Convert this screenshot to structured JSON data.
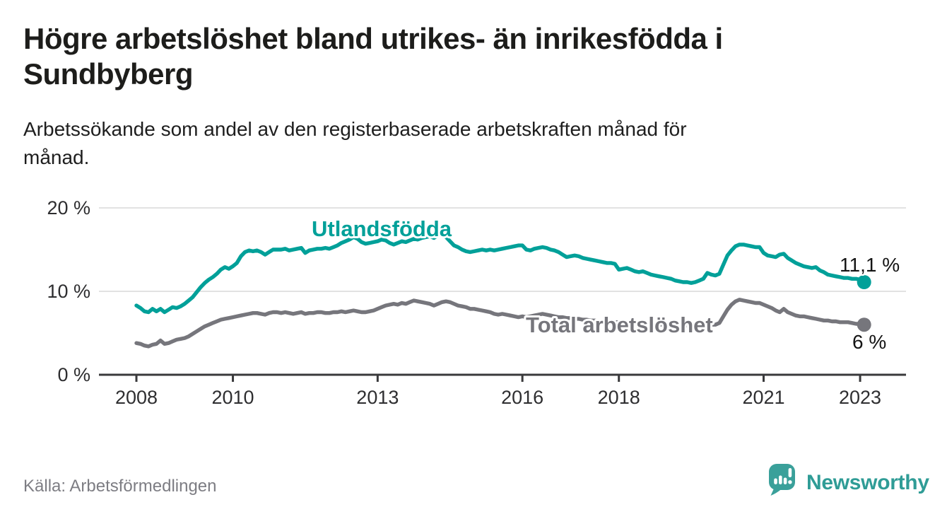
{
  "title": {
    "line1": "Högre arbetslöshet bland utrikes- än inrikesfödda i",
    "line2": "Sundbyberg"
  },
  "subtitle": {
    "line1": "Arbetssökande som andel av den registerbaserade arbetskraften månad för",
    "line2": "månad."
  },
  "source": "Källa: Arbetsförmedlingen",
  "brand": {
    "name": "Newsworthy",
    "icon": "newsworthy-speech-bubble-chart-icon",
    "color": "#2f9c96"
  },
  "chart_data": {
    "type": "line",
    "frequency": "monthly",
    "x_start": "2008-01",
    "x_end": "2023-02",
    "x_ticks": [
      2008,
      2010,
      2013,
      2016,
      2018,
      2021,
      2023
    ],
    "y_ticks": [
      "0 %",
      "10 %",
      "20 %"
    ],
    "ylim": [
      0,
      21
    ],
    "grid": "horizontal",
    "legend_position": "inline-labels",
    "series": [
      {
        "name": "Utlandsfödda",
        "color": "#00a099",
        "end_value": 11.1,
        "end_label": "11,1 %",
        "values": [
          8.3,
          8.0,
          7.6,
          7.5,
          7.9,
          7.6,
          7.9,
          7.5,
          7.8,
          8.1,
          8.0,
          8.2,
          8.5,
          8.9,
          9.3,
          9.9,
          10.5,
          11.0,
          11.4,
          11.7,
          12.1,
          12.6,
          12.9,
          12.7,
          13.0,
          13.4,
          14.2,
          14.7,
          14.9,
          14.8,
          14.9,
          14.7,
          14.4,
          14.7,
          15.0,
          15.0,
          15.0,
          15.1,
          14.9,
          15.0,
          15.1,
          15.2,
          14.6,
          14.9,
          15.0,
          15.1,
          15.1,
          15.2,
          15.1,
          15.3,
          15.5,
          15.8,
          16.0,
          16.2,
          16.5,
          16.3,
          15.9,
          15.7,
          15.8,
          15.9,
          16.0,
          16.2,
          16.1,
          15.8,
          15.6,
          15.8,
          16.0,
          15.9,
          16.1,
          16.3,
          16.2,
          16.4,
          16.5,
          16.6,
          16.4,
          16.7,
          16.9,
          16.5,
          16.0,
          15.5,
          15.3,
          15.0,
          14.8,
          14.7,
          14.8,
          14.9,
          15.0,
          14.9,
          15.0,
          14.9,
          15.0,
          15.1,
          15.2,
          15.3,
          15.4,
          15.5,
          15.5,
          15.0,
          14.9,
          15.1,
          15.2,
          15.3,
          15.2,
          15.0,
          14.9,
          14.7,
          14.4,
          14.1,
          14.2,
          14.3,
          14.2,
          14.0,
          13.9,
          13.8,
          13.7,
          13.6,
          13.5,
          13.4,
          13.4,
          13.3,
          12.6,
          12.7,
          12.8,
          12.6,
          12.4,
          12.3,
          12.4,
          12.2,
          12.0,
          11.9,
          11.8,
          11.7,
          11.6,
          11.5,
          11.3,
          11.2,
          11.1,
          11.1,
          11.0,
          11.1,
          11.3,
          11.5,
          12.2,
          12.0,
          11.9,
          12.1,
          13.2,
          14.3,
          14.9,
          15.4,
          15.6,
          15.6,
          15.5,
          15.4,
          15.3,
          15.3,
          14.6,
          14.3,
          14.2,
          14.1,
          14.4,
          14.5,
          14.0,
          13.7,
          13.4,
          13.2,
          13.0,
          12.9,
          12.8,
          12.9,
          12.5,
          12.3,
          12.0,
          11.9,
          11.8,
          11.7,
          11.6,
          11.6,
          11.5,
          11.5,
          11.4,
          11.1
        ]
      },
      {
        "name": "Total arbetslöshet",
        "color": "#76767c",
        "end_value": 6.0,
        "end_label": "6 %",
        "values": [
          3.8,
          3.7,
          3.5,
          3.4,
          3.6,
          3.7,
          4.1,
          3.7,
          3.8,
          4.0,
          4.2,
          4.3,
          4.4,
          4.6,
          4.9,
          5.2,
          5.5,
          5.8,
          6.0,
          6.2,
          6.4,
          6.6,
          6.7,
          6.8,
          6.9,
          7.0,
          7.1,
          7.2,
          7.3,
          7.4,
          7.4,
          7.3,
          7.2,
          7.4,
          7.5,
          7.5,
          7.4,
          7.5,
          7.4,
          7.3,
          7.4,
          7.5,
          7.3,
          7.4,
          7.4,
          7.5,
          7.5,
          7.4,
          7.4,
          7.5,
          7.5,
          7.6,
          7.5,
          7.6,
          7.7,
          7.6,
          7.5,
          7.5,
          7.6,
          7.7,
          7.9,
          8.1,
          8.3,
          8.4,
          8.5,
          8.4,
          8.6,
          8.5,
          8.7,
          8.9,
          8.8,
          8.7,
          8.6,
          8.5,
          8.3,
          8.5,
          8.7,
          8.8,
          8.7,
          8.5,
          8.3,
          8.2,
          8.1,
          7.9,
          7.9,
          7.8,
          7.7,
          7.6,
          7.5,
          7.3,
          7.2,
          7.3,
          7.2,
          7.1,
          7.0,
          6.9,
          7.0,
          6.9,
          7.0,
          7.1,
          7.2,
          7.3,
          7.2,
          7.1,
          7.0,
          6.9,
          6.9,
          6.8,
          6.8,
          6.7,
          6.7,
          6.6,
          6.6,
          6.5,
          6.5,
          6.4,
          6.4,
          6.4,
          6.3,
          6.3,
          6.3,
          6.2,
          6.2,
          6.1,
          6.1,
          6.1,
          6.1,
          6.0,
          6.0,
          6.0,
          6.0,
          6.0,
          6.0,
          5.9,
          5.9,
          5.9,
          5.9,
          5.9,
          5.9,
          6.0,
          6.0,
          6.1,
          6.1,
          6.0,
          6.0,
          6.2,
          7.0,
          7.8,
          8.4,
          8.8,
          9.0,
          8.9,
          8.8,
          8.7,
          8.6,
          8.6,
          8.4,
          8.2,
          8.0,
          7.7,
          7.5,
          7.9,
          7.5,
          7.3,
          7.1,
          7.0,
          7.0,
          6.9,
          6.8,
          6.7,
          6.6,
          6.5,
          6.5,
          6.4,
          6.4,
          6.3,
          6.3,
          6.3,
          6.2,
          6.1,
          6.1,
          6.0
        ]
      }
    ]
  }
}
